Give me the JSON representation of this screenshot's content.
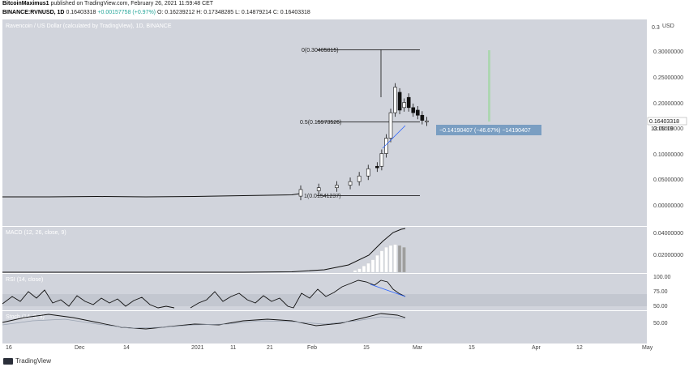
{
  "header": {
    "author": "BitcoinMaximus1",
    "published_text": "published on TradingView.com, February 26, 2021 11:59:48 CET",
    "symbol": "BINANCE:RVNUSD, 1D",
    "ohlc_text": "0.16403318",
    "change_text": "+0.00157758 (+0.97%)",
    "o_text": "O: 0.16239212",
    "h_text": "H: 0.17348285",
    "l_text": "L: 0.14879214",
    "c_text": "C: 0.16403318"
  },
  "main": {
    "title": "Ravencoin / US Dollar (calculated by TradingView), 1D, BINANCE",
    "currency": "USD",
    "price_ticks": [
      "0.30000000",
      "0.25000000",
      "0.20000000",
      "0.15000000",
      "0.10000000",
      "0.05000000",
      "0.00000000"
    ],
    "top_tick": "0.3",
    "last_price": "0.16403318",
    "countdown": "13:00:19",
    "fib_0": "0(0.30405815)",
    "fib_05": "0.5(0.15973526)",
    "fib_1": "1(0.01541237)",
    "measure_label": "−0.14190407 (−46.67%) −14190407"
  },
  "macd": {
    "label": "MACD (12, 26, close, 9)",
    "ticks": [
      "0.04000000",
      "0.02000000"
    ]
  },
  "rsi": {
    "label": "RSI (14, close)",
    "ticks": [
      "100.00",
      "75.00",
      "50.00"
    ]
  },
  "stoch": {
    "label": "Stoch (14, 3, 3)",
    "ticks": [
      "50.00"
    ]
  },
  "xaxis": {
    "labels": [
      "16",
      "Dec",
      "14",
      "2021",
      "11",
      "21",
      "Feb",
      "15",
      "Mar",
      "15",
      "Apr",
      "12",
      "May"
    ]
  },
  "footer": {
    "brand": "TradingView"
  },
  "chart_data": [
    {
      "type": "candlestick",
      "title": "Ravencoin / US Dollar (calculated by TradingView), 1D, BINANCE",
      "ylim": [
        0,
        0.32
      ],
      "x_range": [
        "2020-11-16",
        "2021-05-12"
      ],
      "candles": [
        {
          "date": "2021-01-28",
          "open": 0.0165,
          "close": 0.0295
        },
        {
          "date": "2021-02-01",
          "open": 0.027,
          "close": 0.033
        },
        {
          "date": "2021-02-05",
          "open": 0.033,
          "close": 0.038
        },
        {
          "date": "2021-02-08",
          "open": 0.038,
          "close": 0.045
        },
        {
          "date": "2021-02-10",
          "open": 0.045,
          "close": 0.056
        },
        {
          "date": "2021-02-12",
          "open": 0.056,
          "close": 0.07
        },
        {
          "date": "2021-02-14",
          "open": 0.075,
          "close": 0.072
        },
        {
          "date": "2021-02-15",
          "open": 0.075,
          "close": 0.1
        },
        {
          "date": "2021-02-16",
          "open": 0.1,
          "close": 0.13
        },
        {
          "date": "2021-02-17",
          "open": 0.13,
          "close": 0.18
        },
        {
          "date": "2021-02-18",
          "open": 0.18,
          "close": 0.23
        },
        {
          "date": "2021-02-19",
          "open": 0.22,
          "close": 0.185
        },
        {
          "date": "2021-02-20",
          "open": 0.19,
          "close": 0.2
        },
        {
          "date": "2021-02-21",
          "open": 0.21,
          "close": 0.19
        },
        {
          "date": "2021-02-22",
          "open": 0.19,
          "close": 0.18
        },
        {
          "date": "2021-02-23",
          "open": 0.185,
          "close": 0.175
        },
        {
          "date": "2021-02-24",
          "open": 0.175,
          "close": 0.165
        },
        {
          "date": "2021-02-25",
          "open": 0.162,
          "close": 0.164
        }
      ],
      "fib_levels": [
        {
          "level": 0,
          "price": 0.30405815
        },
        {
          "level": 0.5,
          "price": 0.15973526
        },
        {
          "level": 1,
          "price": 0.01541237
        }
      ],
      "last_price": 0.16403318
    },
    {
      "type": "bar+line",
      "title": "MACD (12, 26, close, 9)",
      "ylim": [
        0,
        0.05
      ],
      "histogram": [
        0.002,
        0.004,
        0.007,
        0.01,
        0.014,
        0.019,
        0.024,
        0.028,
        0.03,
        0.031,
        0.03,
        0.028
      ],
      "macd_line_end": 0.046
    },
    {
      "type": "line",
      "title": "RSI (14, close)",
      "ylim": [
        30,
        100
      ],
      "bands": [
        50,
        75
      ],
      "last": 70
    },
    {
      "type": "line",
      "title": "Stoch (14, 3, 3)",
      "ylim": [
        20,
        80
      ],
      "level": 50
    }
  ]
}
